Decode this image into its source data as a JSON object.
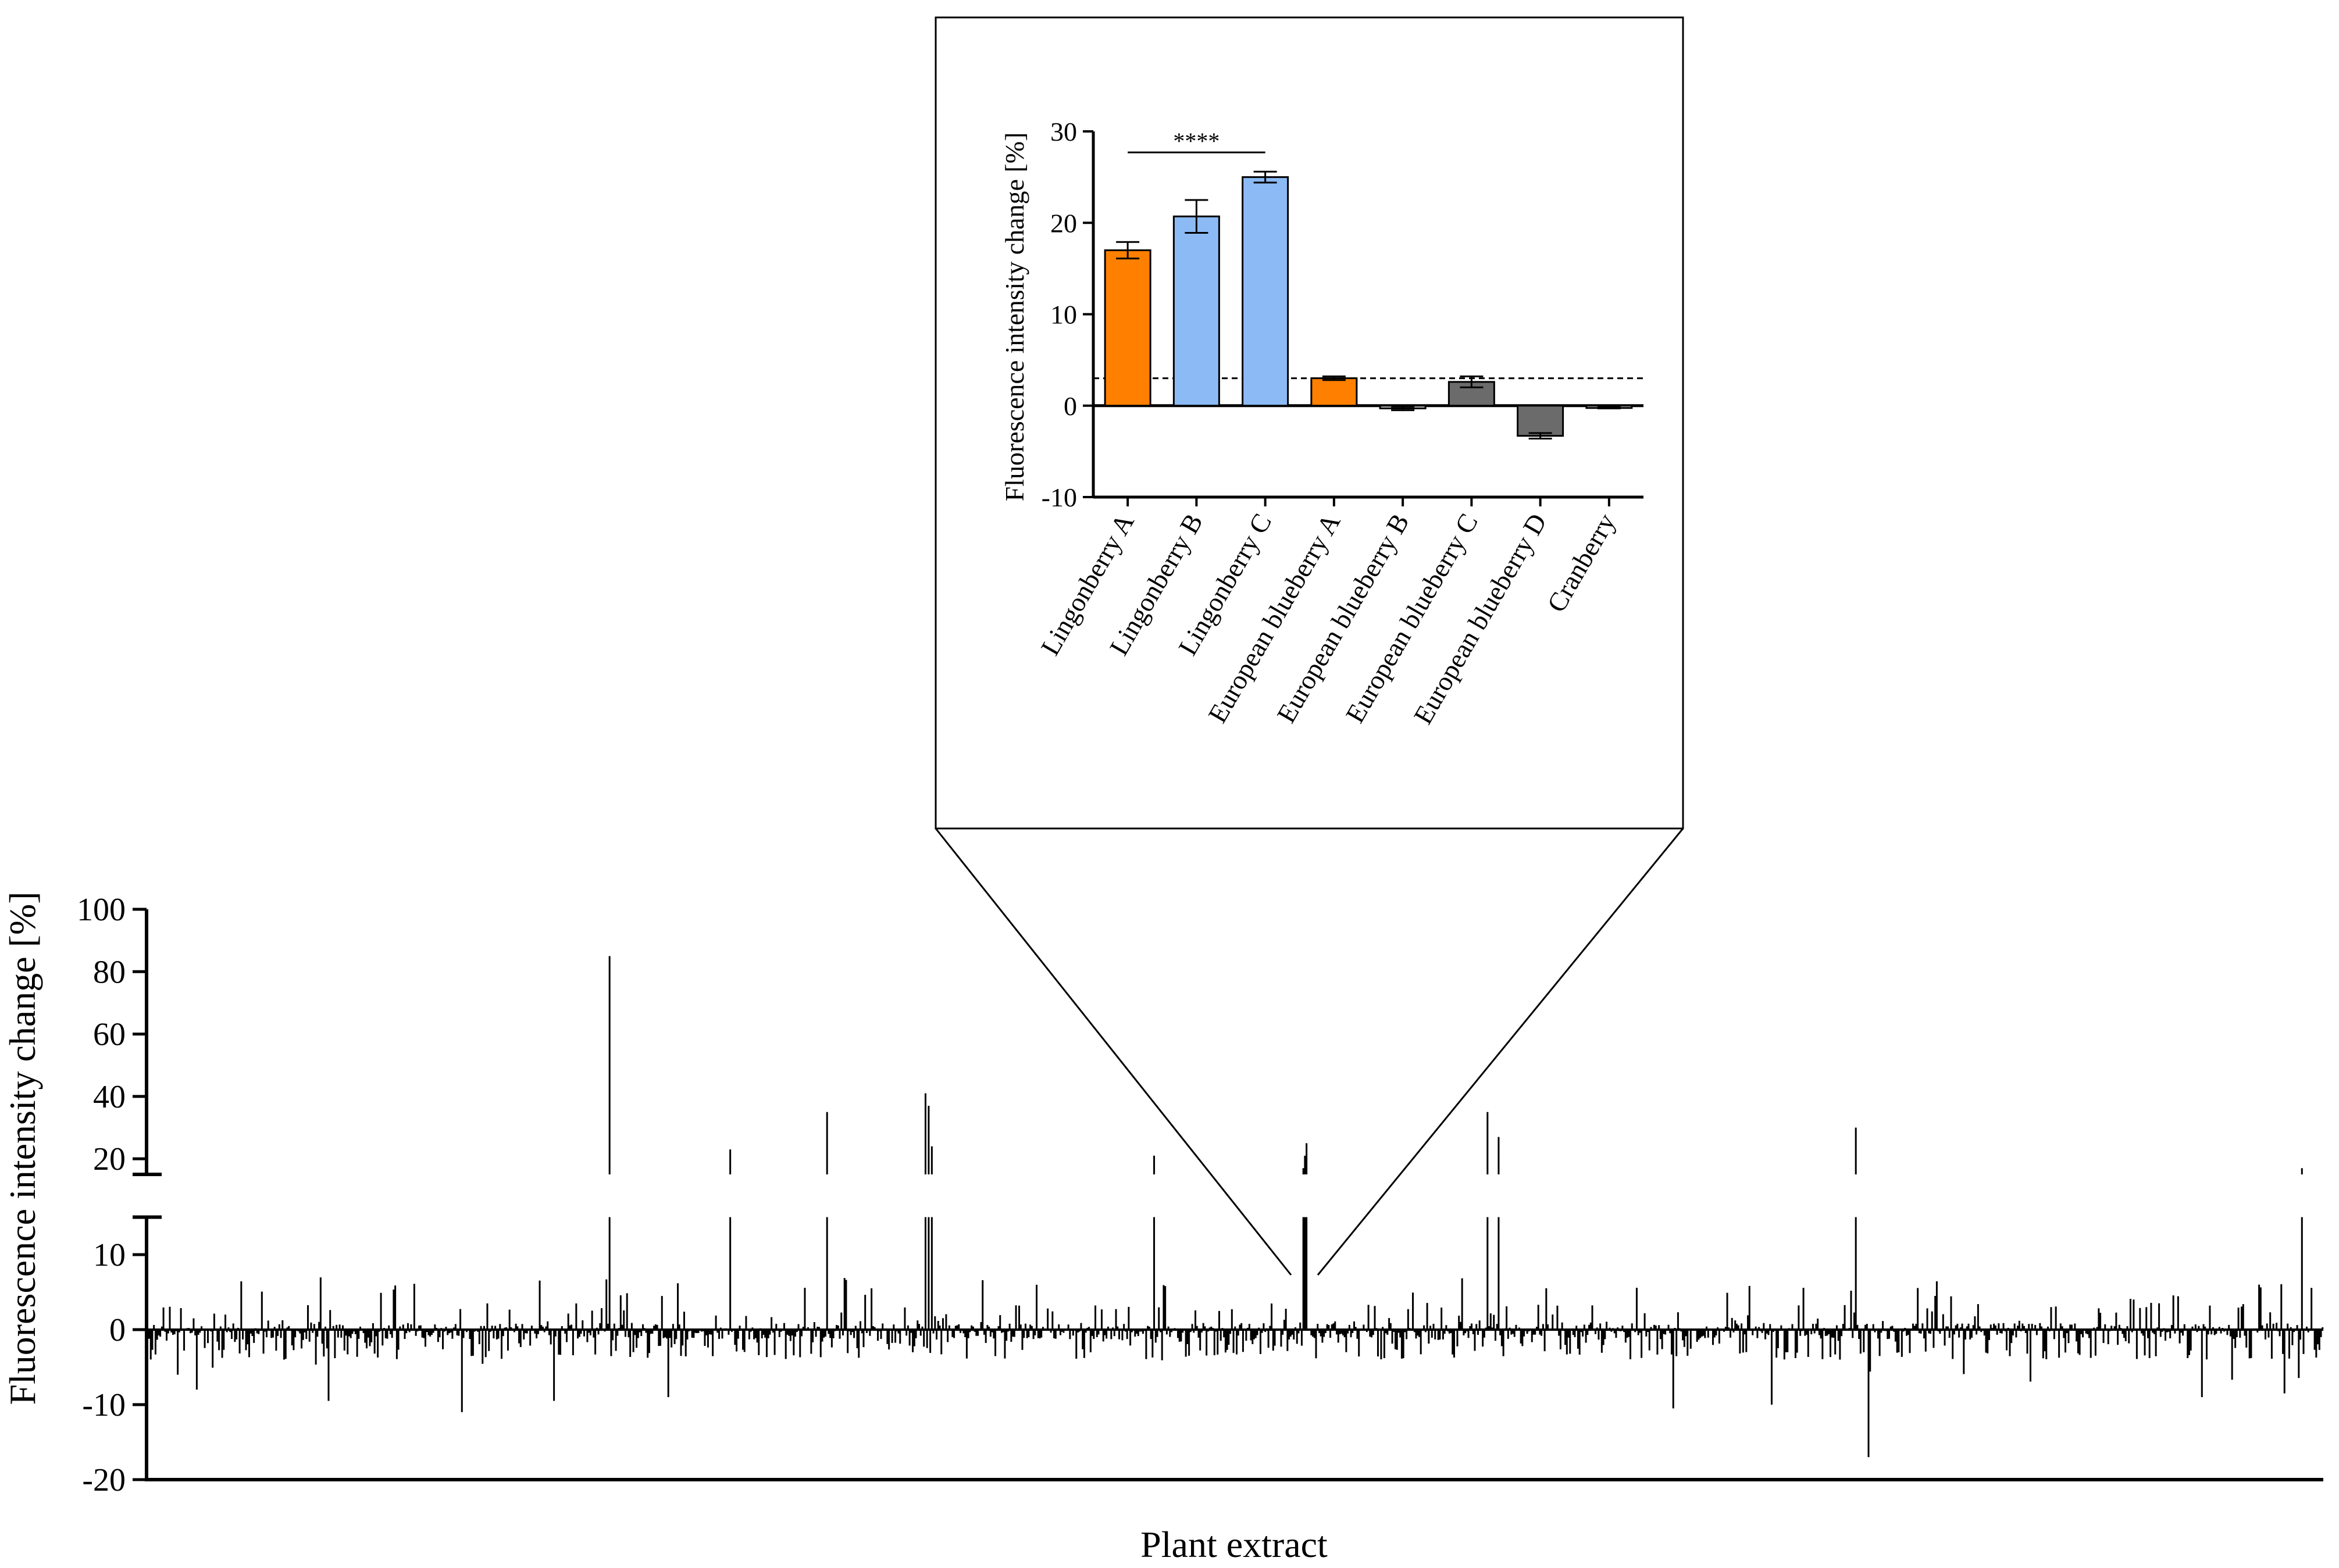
{
  "figure": {
    "colors": {
      "axis": "#000000",
      "lingonberry_like_orange": "#ff8000",
      "lingonberry_blue": "#8cbaf5",
      "gray": "#6b6b6b",
      "light_gray": "#d0d0d0",
      "background": "#ffffff"
    }
  },
  "chart_data": [
    {
      "type": "bar",
      "role": "main",
      "title": "",
      "xlabel": "Plant extract",
      "ylabel": "Fluorescence intensity change [%]",
      "axis_break": {
        "lower_range": [
          -20,
          15
        ],
        "upper_range": [
          15,
          100
        ]
      },
      "yticks_lower": [
        "-20",
        "-10",
        "0",
        "10"
      ],
      "yticks_upper": [
        "20",
        "40",
        "60",
        "80",
        "100"
      ],
      "ylim": [
        -20,
        100
      ],
      "n_extracts": 1370,
      "notable_values": [
        {
          "index": 290,
          "value": 85
        },
        {
          "index": 366,
          "value": 23
        },
        {
          "index": 427,
          "value": 35
        },
        {
          "index": 489,
          "value": 41
        },
        {
          "index": 491,
          "value": 37
        },
        {
          "index": 493,
          "value": 24
        },
        {
          "index": 633,
          "value": 21
        },
        {
          "index": 727,
          "value": 17
        },
        {
          "index": 728,
          "value": 21
        },
        {
          "index": 729,
          "value": 25
        },
        {
          "index": 843,
          "value": 35
        },
        {
          "index": 850,
          "value": 27
        },
        {
          "index": 1075,
          "value": 30
        },
        {
          "index": 1356,
          "value": 17
        },
        {
          "index": 1083,
          "value": -17
        },
        {
          "index": 197,
          "value": -11
        },
        {
          "index": 960,
          "value": -10.5
        },
        {
          "index": 30,
          "value": -8
        },
        {
          "index": 113,
          "value": -9.5
        },
        {
          "index": 255,
          "value": -9.5
        },
        {
          "index": 327,
          "value": -9
        },
        {
          "index": 1022,
          "value": -10
        },
        {
          "index": 1345,
          "value": -8.5
        },
        {
          "index": 1293,
          "value": -9
        }
      ],
      "zoom_index_range": [
        726,
        734
      ]
    },
    {
      "type": "bar",
      "role": "inset",
      "title": "",
      "xlabel": "",
      "ylabel": "Fluorescence intensity change [%]",
      "ylim": [
        -10,
        30
      ],
      "yticks": [
        "-10",
        "0",
        "10",
        "20",
        "30"
      ],
      "threshold_value": 3,
      "categories": [
        "Lingonberry A",
        "Lingonberry B",
        "Lingonberry C",
        "European blueberry A",
        "European blueberry B",
        "European blueberry C",
        "European blueberry D",
        "Cranberry"
      ],
      "values": [
        17,
        20.7,
        25,
        3,
        -0.3,
        2.6,
        -3.3,
        -0.2
      ],
      "errors": [
        0.9,
        1.8,
        0.6,
        0.2,
        0.2,
        0.6,
        0.3,
        0.1
      ],
      "bar_colors": [
        "#ff8000",
        "#8cbaf5",
        "#8cbaf5",
        "#ff8000",
        "#d0d0d0",
        "#6b6b6b",
        "#6b6b6b",
        "#d0d0d0"
      ],
      "significance": {
        "label": "****",
        "from_category": 0,
        "to_category": 2
      }
    }
  ]
}
